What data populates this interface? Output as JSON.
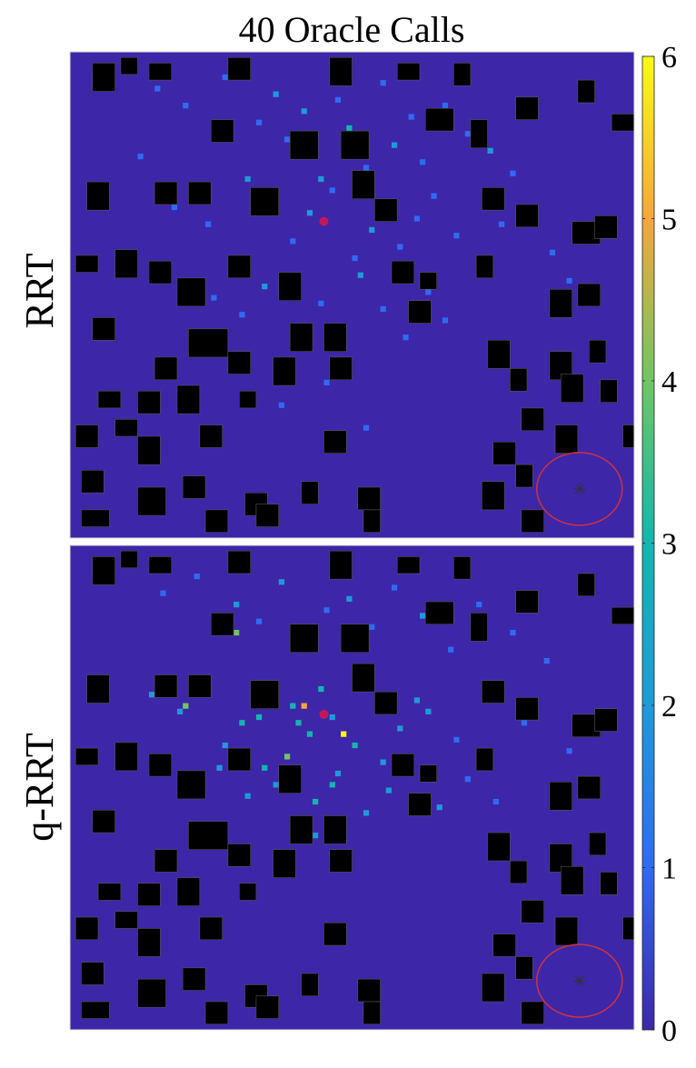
{
  "chart_data": [
    {
      "type": "heatmap",
      "title": "40 Oracle Calls",
      "label": "RRT",
      "xlim": [
        0,
        100
      ],
      "ylim": [
        0,
        86
      ],
      "y_reversed": true,
      "clim": [
        0,
        6
      ],
      "cticks": [
        0,
        1,
        2,
        3,
        4,
        5,
        6
      ],
      "colormap": [
        "#3e26a8",
        "#2f6bf2",
        "#1f9ad9",
        "#12b6b0",
        "#6fc663",
        "#f5a73c",
        "#f9fb14"
      ],
      "x": [
        15,
        20,
        27,
        33,
        36,
        38,
        41,
        43,
        44,
        47,
        49,
        52,
        55,
        57,
        60,
        62,
        66,
        70,
        74,
        78,
        12,
        18,
        24,
        31,
        35,
        39,
        42,
        46,
        50,
        53,
        56,
        58,
        61,
        64,
        68,
        72,
        76,
        81,
        85,
        88,
        25,
        30,
        34,
        40,
        44,
        48,
        51,
        55,
        59,
        63,
        37,
        45,
        52,
        29,
        66
      ],
      "y": [
        6,
        9,
        4,
        12,
        7,
        15,
        10,
        18,
        22,
        8,
        13,
        20,
        5,
        16,
        11,
        19,
        9,
        14,
        17,
        21,
        18,
        27,
        30,
        22,
        26,
        33,
        28,
        24,
        36,
        31,
        27,
        34,
        29,
        25,
        32,
        38,
        30,
        28,
        35,
        40,
        43,
        46,
        41,
        48,
        44,
        52,
        39,
        45,
        50,
        42,
        62,
        58,
        66,
        56,
        47
      ],
      "values": [
        1,
        1,
        1,
        1,
        2,
        1,
        2,
        1,
        2,
        1,
        3,
        1,
        1,
        2,
        1,
        1,
        1,
        1,
        2,
        1,
        1,
        1,
        1,
        2,
        1,
        1,
        2,
        1,
        1,
        2,
        1,
        1,
        1,
        1,
        1,
        1,
        1,
        2,
        1,
        1,
        1,
        1,
        2,
        1,
        1,
        1,
        2,
        1,
        1,
        1,
        1,
        1,
        1,
        1,
        1
      ]
    },
    {
      "type": "heatmap",
      "label": "q-RRT",
      "xlim": [
        0,
        100
      ],
      "ylim": [
        0,
        86
      ],
      "y_reversed": true,
      "x": [
        10,
        16,
        22,
        29,
        33,
        37,
        41,
        45,
        49,
        53,
        57,
        62,
        67,
        72,
        78,
        84,
        14,
        19,
        24,
        30,
        35,
        39,
        42,
        46,
        50,
        54,
        58,
        63,
        68,
        73,
        80,
        88,
        20,
        26,
        31,
        36,
        43,
        47,
        52,
        56,
        60,
        65,
        70,
        75,
        43,
        49,
        29,
        20,
        41,
        38,
        44,
        48,
        34,
        51,
        27,
        33,
        40,
        55,
        61,
        46
      ],
      "y": [
        3,
        8,
        5,
        10,
        13,
        6,
        16,
        11,
        9,
        14,
        7,
        12,
        18,
        10,
        15,
        20,
        26,
        29,
        24,
        31,
        27,
        28,
        33,
        30,
        35,
        26,
        32,
        29,
        34,
        37,
        31,
        36,
        41,
        39,
        44,
        42,
        45,
        40,
        47,
        43,
        39,
        46,
        41,
        45,
        51,
        56,
        15,
        28,
        28,
        37,
        25,
        33,
        39,
        22,
        35,
        30,
        31,
        38,
        27,
        42
      ],
      "values": [
        1,
        1,
        1,
        2,
        1,
        2,
        2,
        1,
        2,
        1,
        1,
        2,
        1,
        1,
        1,
        1,
        2,
        2,
        2,
        3,
        2,
        3,
        3,
        2,
        3,
        2,
        2,
        2,
        1,
        2,
        1,
        1,
        1,
        2,
        2,
        2,
        3,
        2,
        2,
        2,
        1,
        2,
        1,
        1,
        2,
        1,
        4,
        4,
        5,
        4,
        3,
        6,
        3,
        3,
        2,
        3,
        3,
        2,
        2,
        3
      ]
    }
  ]
}
